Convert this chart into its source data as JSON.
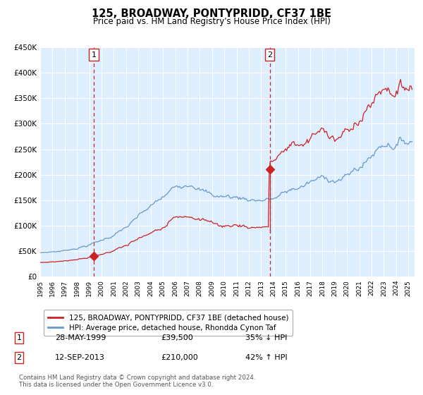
{
  "title": "125, BROADWAY, PONTYPRIDD, CF37 1BE",
  "subtitle": "Price paid vs. HM Land Registry's House Price Index (HPI)",
  "legend_line1": "125, BROADWAY, PONTYPRIDD, CF37 1BE (detached house)",
  "legend_line2": "HPI: Average price, detached house, Rhondda Cynon Taf",
  "annotation1_date": "28-MAY-1999",
  "annotation1_price": "£39,500",
  "annotation1_pct": "35% ↓ HPI",
  "annotation2_date": "12-SEP-2013",
  "annotation2_price": "£210,000",
  "annotation2_pct": "42% ↑ HPI",
  "sale1_year": 1999.38,
  "sale1_value": 39500,
  "sale2_year": 2013.7,
  "sale2_value": 210000,
  "ylim_max": 450000,
  "ylim_min": 0,
  "xlim_min": 1995.0,
  "xlim_max": 2025.5,
  "plot_bg_color": "#ddeeff",
  "red_line_color": "#cc2222",
  "blue_line_color": "#6699cc",
  "footnote": "Contains HM Land Registry data © Crown copyright and database right 2024.\nThis data is licensed under the Open Government Licence v3.0."
}
